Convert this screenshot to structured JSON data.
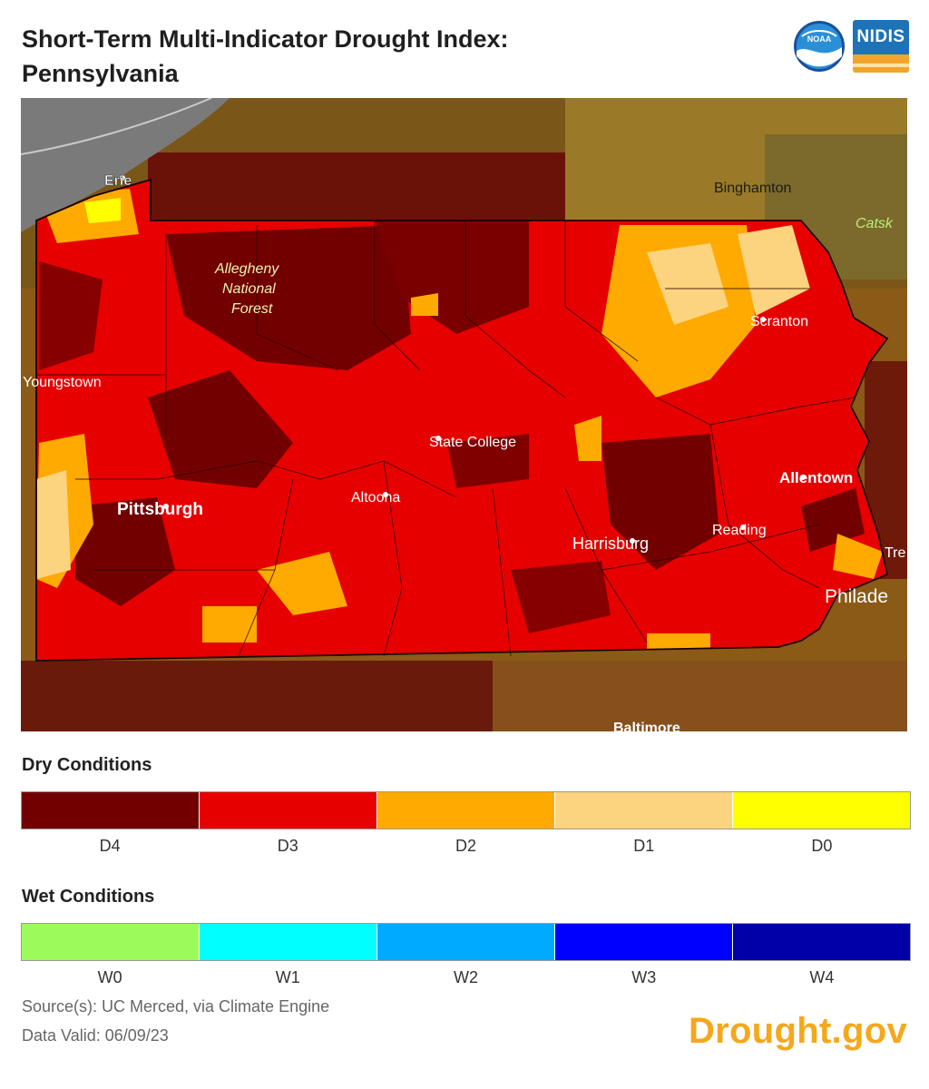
{
  "title_line1": "Short-Term Multi-Indicator Drought Index:",
  "title_line2": "Pennsylvania",
  "logos": {
    "noaa": "NOAA",
    "nidis": "NIDIS"
  },
  "map": {
    "labels": {
      "erie": "Erie",
      "binghamton": "Binghamton",
      "catskills": "Catsk",
      "allegheny1": "Allegheny",
      "allegheny2": "National",
      "allegheny3": "Forest",
      "scranton": "Scranton",
      "youngstown": "Youngstown",
      "state_college": "State College",
      "allentown": "Allentown",
      "altoona": "Altoona",
      "pittsburgh": "Pittsburgh",
      "reading": "Reading",
      "harrisburg": "Harrisburg",
      "trenton": "Tre",
      "philadelphia": "Philade",
      "baltimore": "Baltimore"
    }
  },
  "dry": {
    "heading": "Dry Conditions",
    "items": [
      {
        "label": "D4",
        "color": "#730000"
      },
      {
        "label": "D3",
        "color": "#e60000"
      },
      {
        "label": "D2",
        "color": "#ffaa00"
      },
      {
        "label": "D1",
        "color": "#fcd37f"
      },
      {
        "label": "D0",
        "color": "#ffff00"
      }
    ]
  },
  "wet": {
    "heading": "Wet Conditions",
    "items": [
      {
        "label": "W0",
        "color": "#9dfa5b"
      },
      {
        "label": "W1",
        "color": "#00ffff"
      },
      {
        "label": "W2",
        "color": "#00aaff"
      },
      {
        "label": "W3",
        "color": "#0000ff"
      },
      {
        "label": "W4",
        "color": "#0000a8"
      }
    ]
  },
  "source_line": "Source(s): UC Merced, via Climate Engine",
  "valid_line": "Data Valid: 06/09/23",
  "brand": "Drought.gov"
}
